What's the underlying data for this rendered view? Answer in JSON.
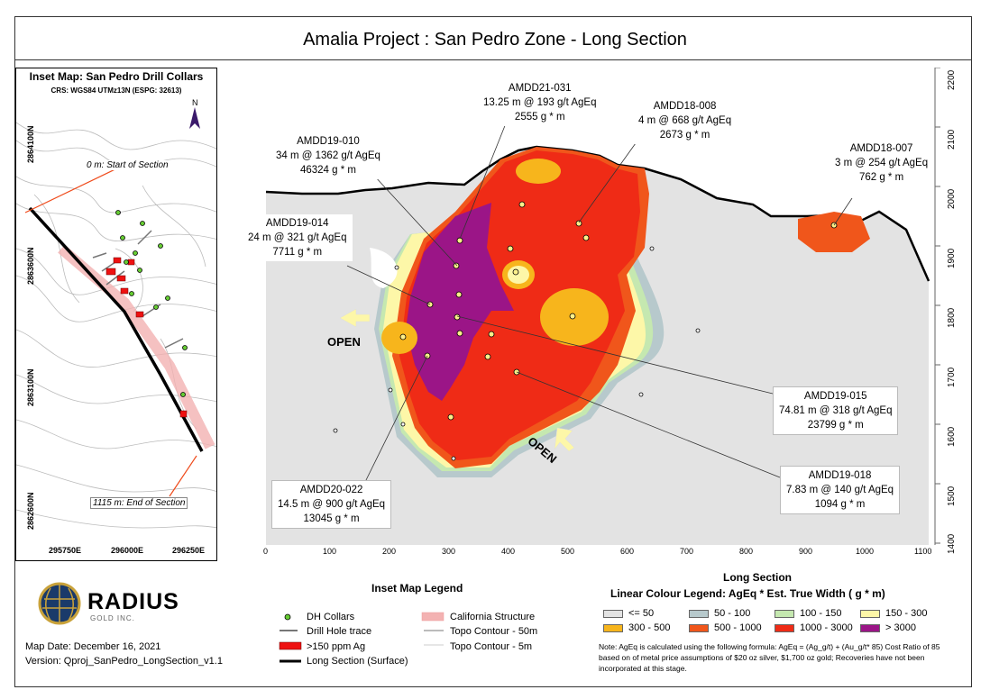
{
  "title": "Amalia Project : San Pedro Zone - Long Section",
  "inset": {
    "title": "Inset Map: San Pedro Drill Collars",
    "crs": "CRS: WGS84 UTMz13N (ESPG: 32613)",
    "start_label": "0 m: Start of Section",
    "end_label": "1115 m: End of Section",
    "y_ticks": [
      "2864100N",
      "2863600N",
      "2863100N",
      "2862600N"
    ],
    "x_ticks": [
      "295750E",
      "296000E",
      "296250E"
    ]
  },
  "section": {
    "x_ticks": [
      "0",
      "100",
      "200",
      "300",
      "400",
      "500",
      "600",
      "700",
      "800",
      "900",
      "1000",
      "1100"
    ],
    "y_ticks": [
      "2200",
      "2100",
      "2000",
      "1900",
      "1800",
      "1700",
      "1600",
      "1500",
      "1400"
    ],
    "open_label": "OPEN",
    "callouts": [
      {
        "hole": "AMDD21-031",
        "interval": "13.25 m @ 193 g/t AgEq",
        "gm": "2555 g * m"
      },
      {
        "hole": "AMDD18-008",
        "interval": "4 m @ 668 g/t AgEq",
        "gm": "2673 g * m"
      },
      {
        "hole": "AMDD19-010",
        "interval": "34 m @ 1362 g/t AgEq",
        "gm": "46324 g * m"
      },
      {
        "hole": "AMDD18-007",
        "interval": "3 m @ 254 g/t AgEq",
        "gm": "762 g * m"
      },
      {
        "hole": "AMDD19-014",
        "interval": "24 m @ 321 g/t AgEq",
        "gm": "7711 g * m"
      },
      {
        "hole": "AMDD19-015",
        "interval": "74.81 m @ 318 g/t AgEq",
        "gm": "23799 g * m"
      },
      {
        "hole": "AMDD19-018",
        "interval": "7.83 m @ 140 g/t AgEq",
        "gm": "1094 g * m"
      },
      {
        "hole": "AMDD20-022",
        "interval": "14.5 m @ 900 g/t AgEq",
        "gm": "13045 g * m"
      }
    ]
  },
  "inset_legend": {
    "title": "Inset Map Legend",
    "items": [
      "DH Collars",
      "Drill Hole trace",
      ">150 ppm Ag",
      "Long Section (Surface)",
      "California Structure",
      "Topo Contour - 50m",
      "Topo Contour - 5m"
    ]
  },
  "long_legend": {
    "title": "Long Section",
    "subtitle": "Linear Colour Legend:  AgEq * Est. True Width ( g * m)",
    "classes": [
      {
        "label": "<= 50",
        "color": "#e3e3e3"
      },
      {
        "label": "50 - 100",
        "color": "#b7c9cc"
      },
      {
        "label": "100 - 150",
        "color": "#c5e8b0"
      },
      {
        "label": "150 - 300",
        "color": "#fdf7a8"
      },
      {
        "label": "300 - 500",
        "color": "#f7b51c"
      },
      {
        "label": "500 - 1000",
        "color": "#f0561b"
      },
      {
        "label": "1000 - 3000",
        "color": "#ef2b16"
      },
      {
        "label": "> 3000",
        "color": "#9b1587"
      }
    ],
    "note": "Note: AgEq is calculated using the following formula:  AgEq = (Ag_g/t) + (Au_g/t* 85) Cost Ratio of 85 based on of metal price assumptions of $20 oz silver, $1,700 oz gold; Recoveries have not been incorporated at this stage."
  },
  "logo": {
    "name": "RADIUS",
    "sub": "GOLD INC."
  },
  "map_date": "Map Date: December 16, 2021",
  "version": "Version: Qproj_SanPedro_LongSection_v1.1"
}
